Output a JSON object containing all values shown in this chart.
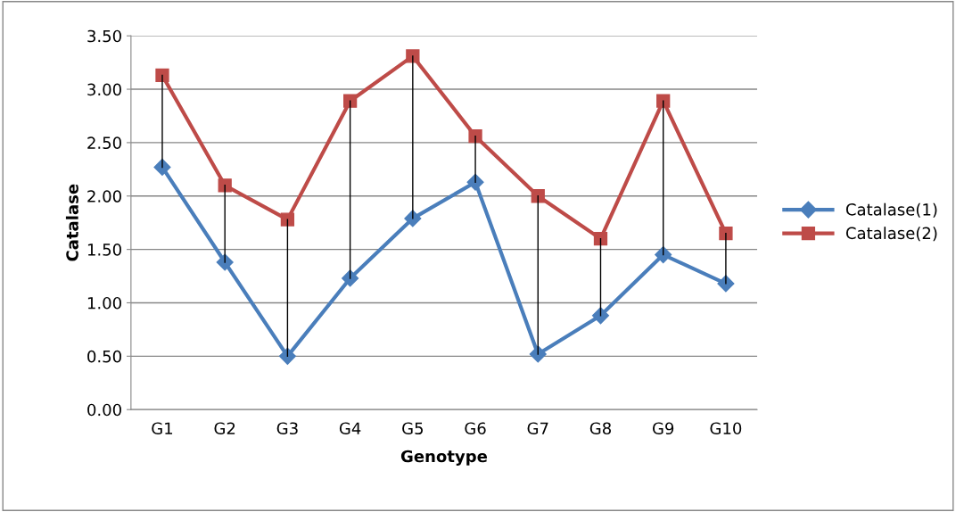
{
  "chart_data": {
    "type": "line",
    "xlabel": "Genotype",
    "ylabel": "Catalase",
    "categories": [
      "G1",
      "G2",
      "G3",
      "G4",
      "G5",
      "G6",
      "G7",
      "G8",
      "G9",
      "G10"
    ],
    "series": [
      {
        "name": "Catalase(1)",
        "color": "#4a7ebb",
        "marker": "diamond",
        "values": [
          2.27,
          1.38,
          0.5,
          1.23,
          1.79,
          2.13,
          0.52,
          0.88,
          1.45,
          1.18
        ]
      },
      {
        "name": "Catalase(2)",
        "color": "#be4b48",
        "marker": "square",
        "values": [
          3.13,
          2.1,
          1.78,
          2.89,
          3.31,
          2.56,
          2.0,
          1.6,
          2.89,
          1.65
        ],
        "errors": [
          [
            2.27,
            3.13
          ],
          [
            1.38,
            2.1
          ],
          [
            0.5,
            1.78
          ],
          [
            1.23,
            2.89
          ],
          [
            1.79,
            3.31
          ],
          [
            2.13,
            2.56
          ],
          [
            0.52,
            2.0
          ],
          [
            0.88,
            1.6
          ],
          [
            1.45,
            2.89
          ],
          [
            1.18,
            1.65
          ]
        ]
      }
    ],
    "ylim": [
      0,
      3.5
    ],
    "yticks": [
      {
        "value": 0,
        "label": "0.00"
      },
      {
        "value": 0.5,
        "label": "0.50"
      },
      {
        "value": 1,
        "label": "1.00"
      },
      {
        "value": 1.5,
        "label": "1.50"
      },
      {
        "value": 2,
        "label": "2.00"
      },
      {
        "value": 2.5,
        "label": "2.50"
      },
      {
        "value": 3,
        "label": "3.00"
      },
      {
        "value": 3.5,
        "label": "3.50"
      }
    ],
    "grid": "y",
    "legend": "right",
    "line_style": "solid"
  }
}
